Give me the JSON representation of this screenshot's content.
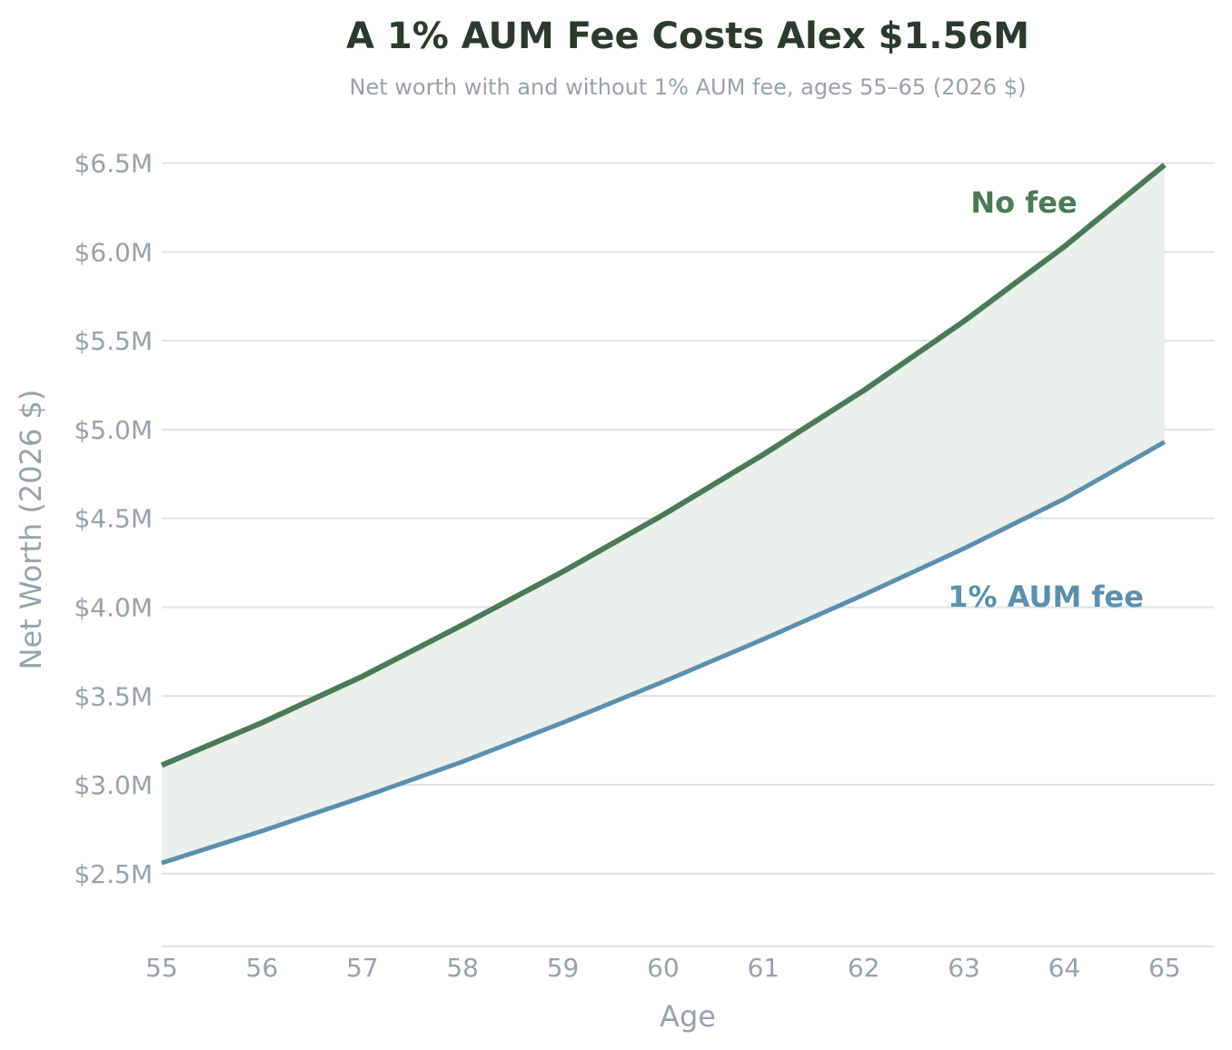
{
  "chart_data": {
    "type": "line",
    "title": "A 1% AUM Fee Costs Alex $1.56M",
    "subtitle": "Net worth with and without 1% AUM fee, ages 55–65 (2026 $)",
    "xlabel": "Age",
    "ylabel": "Net Worth (2026 $)",
    "x": [
      55,
      56,
      57,
      58,
      59,
      60,
      61,
      62,
      63,
      64,
      65
    ],
    "xticks": [
      "55",
      "56",
      "57",
      "58",
      "59",
      "60",
      "61",
      "62",
      "63",
      "64",
      "65"
    ],
    "yticks": [
      {
        "value": 2.5,
        "label": "$2.5M"
      },
      {
        "value": 3.0,
        "label": "$3.0M"
      },
      {
        "value": 3.5,
        "label": "$3.5M"
      },
      {
        "value": 4.0,
        "label": "$4.0M"
      },
      {
        "value": 4.5,
        "label": "$4.5M"
      },
      {
        "value": 5.0,
        "label": "$5.0M"
      },
      {
        "value": 5.5,
        "label": "$5.5M"
      },
      {
        "value": 6.0,
        "label": "$6.0M"
      },
      {
        "value": 6.5,
        "label": "$6.5M"
      }
    ],
    "xlim": [
      55,
      65.5
    ],
    "ylim": [
      2.09,
      6.6
    ],
    "grid": true,
    "fill_between_series": true,
    "series": [
      {
        "name": "No fee",
        "color": "#4a7a56",
        "values": [
          3.11,
          3.35,
          3.61,
          3.9,
          4.2,
          4.52,
          4.86,
          5.22,
          5.61,
          6.03,
          6.49
        ]
      },
      {
        "name": "1% AUM fee",
        "color": "#5b8fae",
        "values": [
          2.56,
          2.74,
          2.93,
          3.13,
          3.35,
          3.58,
          3.82,
          4.07,
          4.33,
          4.61,
          4.93
        ]
      }
    ],
    "fill_color": "#ebf0ec"
  }
}
